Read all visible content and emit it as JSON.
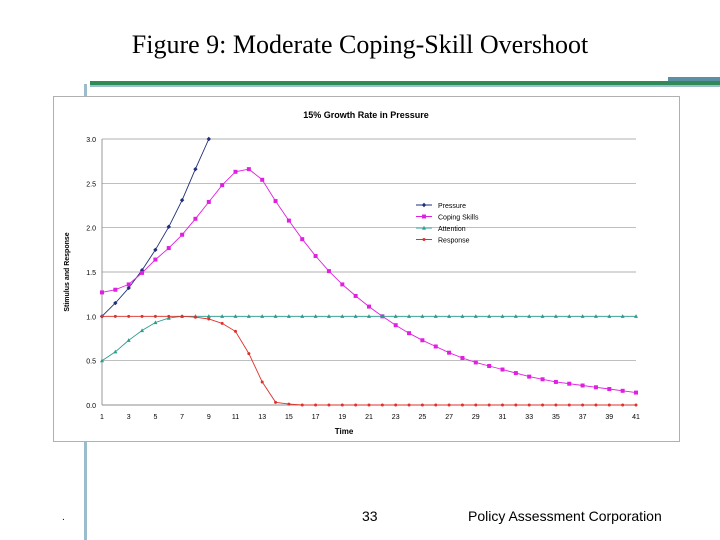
{
  "slide": {
    "title": "Figure 9:  Moderate Coping-Skill Overshoot",
    "page_number": "33",
    "organization": "Policy Assessment Corporation",
    "footer_mark": "."
  },
  "colors": {
    "pressure": "#1f2f7a",
    "coping": "#e020e0",
    "attention": "#2a9d8f",
    "response": "#e0302a",
    "grid": "#999999"
  },
  "chart_data": {
    "type": "line",
    "title": "15% Growth Rate  in Pressure",
    "xlabel": "Time",
    "ylabel": "Stimulus and Response",
    "xlim": [
      1,
      41
    ],
    "ylim": [
      0,
      3
    ],
    "x_ticks": [
      1,
      3,
      5,
      7,
      9,
      11,
      13,
      15,
      17,
      19,
      21,
      23,
      25,
      27,
      29,
      31,
      33,
      35,
      37,
      39,
      41
    ],
    "y_ticks": [
      "0.0",
      "0.5",
      "1.0",
      "1.5",
      "2.0",
      "2.5",
      "3.0"
    ],
    "grid": "horizontal",
    "legend_position": "right",
    "series": [
      {
        "name": "Pressure",
        "color_key": "pressure",
        "marker": "diamond",
        "x": [
          1,
          2,
          3,
          4,
          5,
          6,
          7,
          8,
          9
        ],
        "y": [
          1.0,
          1.15,
          1.32,
          1.52,
          1.75,
          2.01,
          2.31,
          2.66,
          3.0
        ]
      },
      {
        "name": "Coping Skills",
        "color_key": "coping",
        "marker": "square",
        "x": [
          1,
          2,
          3,
          4,
          5,
          6,
          7,
          8,
          9,
          10,
          11,
          12,
          13,
          14,
          15,
          16,
          17,
          18,
          19,
          20,
          21,
          22,
          23,
          24,
          25,
          26,
          27,
          28,
          29,
          30,
          31,
          32,
          33,
          34,
          35,
          36,
          37,
          38,
          39,
          40,
          41
        ],
        "y": [
          1.27,
          1.3,
          1.36,
          1.49,
          1.64,
          1.77,
          1.92,
          2.1,
          2.29,
          2.48,
          2.63,
          2.66,
          2.54,
          2.3,
          2.08,
          1.87,
          1.68,
          1.51,
          1.36,
          1.23,
          1.11,
          1.0,
          0.9,
          0.81,
          0.73,
          0.66,
          0.59,
          0.53,
          0.48,
          0.44,
          0.4,
          0.36,
          0.32,
          0.29,
          0.26,
          0.24,
          0.22,
          0.2,
          0.18,
          0.16,
          0.14
        ]
      },
      {
        "name": "Attention",
        "color_key": "attention",
        "marker": "triangle",
        "x": [
          1,
          2,
          3,
          4,
          5,
          6,
          7,
          8,
          9,
          10,
          11,
          12,
          13,
          14,
          15,
          16,
          17,
          18,
          19,
          20,
          21,
          22,
          23,
          24,
          25,
          26,
          27,
          28,
          29,
          30,
          31,
          32,
          33,
          34,
          35,
          36,
          37,
          38,
          39,
          40,
          41
        ],
        "y": [
          0.5,
          0.6,
          0.73,
          0.84,
          0.93,
          0.98,
          1.0,
          1.0,
          1.0,
          1.0,
          1.0,
          1.0,
          1.0,
          1.0,
          1.0,
          1.0,
          1.0,
          1.0,
          1.0,
          1.0,
          1.0,
          1.0,
          1.0,
          1.0,
          1.0,
          1.0,
          1.0,
          1.0,
          1.0,
          1.0,
          1.0,
          1.0,
          1.0,
          1.0,
          1.0,
          1.0,
          1.0,
          1.0,
          1.0,
          1.0,
          1.0
        ]
      },
      {
        "name": "Response",
        "color_key": "response",
        "marker": "dot",
        "x": [
          1,
          2,
          3,
          4,
          5,
          6,
          7,
          8,
          9,
          10,
          11,
          12,
          13,
          14,
          15,
          16,
          17,
          18,
          19,
          20,
          21,
          22,
          23,
          24,
          25,
          26,
          27,
          28,
          29,
          30,
          31,
          32,
          33,
          34,
          35,
          36,
          37,
          38,
          39,
          40,
          41
        ],
        "y": [
          1.0,
          1.0,
          1.0,
          1.0,
          1.0,
          1.0,
          1.0,
          0.99,
          0.97,
          0.92,
          0.83,
          0.58,
          0.26,
          0.03,
          0.01,
          0.0,
          0.0,
          0.0,
          0.0,
          0.0,
          0.0,
          0.0,
          0.0,
          0.0,
          0.0,
          0.0,
          0.0,
          0.0,
          0.0,
          0.0,
          0.0,
          0.0,
          0.0,
          0.0,
          0.0,
          0.0,
          0.0,
          0.0,
          0.0,
          0.0,
          0.0
        ]
      }
    ]
  }
}
